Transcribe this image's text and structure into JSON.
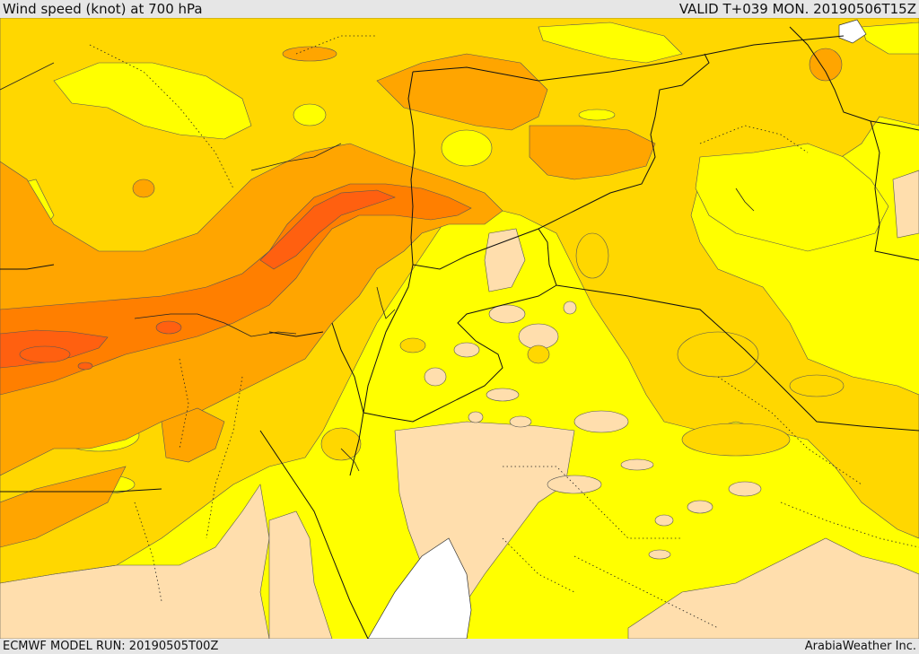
{
  "header": {
    "title": "Wind speed (knot) at 700 hPa",
    "valid": "VALID T+039 MON. 20190506T15Z"
  },
  "footer": {
    "model_run": "ECMWF MODEL RUN: 20190505T00Z",
    "credit": "ArabiaWeather Inc."
  },
  "map": {
    "colors": {
      "background": "#ffff00",
      "calm": "#ffdead",
      "level1": "#ffd700",
      "level2": "#ffa500",
      "level3": "#ff7f00",
      "level4": "#ff6000",
      "water": "#ffffff",
      "border": "#000000"
    }
  }
}
